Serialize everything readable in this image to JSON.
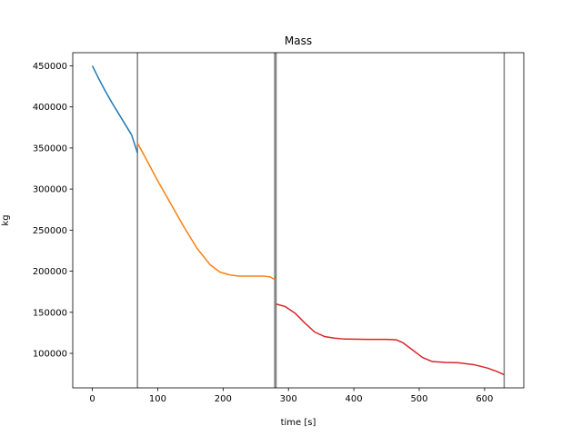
{
  "chart_data": {
    "type": "line",
    "title": "Mass",
    "xlabel": "time [s]",
    "ylabel": "kg",
    "xlim": [
      -30,
      660
    ],
    "ylim": [
      58000,
      466000
    ],
    "xticks": [
      0,
      100,
      200,
      300,
      400,
      500,
      600
    ],
    "yticks": [
      100000,
      150000,
      200000,
      250000,
      300000,
      350000,
      400000,
      450000
    ],
    "grid": false,
    "vlines": {
      "x": [
        69,
        279,
        281,
        630
      ],
      "color": "#808080"
    },
    "series": [
      {
        "color": "#1f77b4",
        "points": [
          [
            0,
            450000
          ],
          [
            10,
            434000
          ],
          [
            20,
            419000
          ],
          [
            30,
            405000
          ],
          [
            40,
            392000
          ],
          [
            50,
            379000
          ],
          [
            60,
            366000
          ],
          [
            69,
            344000
          ]
        ]
      },
      {
        "color": "#ff7f0e",
        "points": [
          [
            69,
            356000
          ],
          [
            80,
            340000
          ],
          [
            100,
            310000
          ],
          [
            120,
            282000
          ],
          [
            140,
            254000
          ],
          [
            160,
            228000
          ],
          [
            180,
            208000
          ],
          [
            195,
            199000
          ],
          [
            210,
            195500
          ],
          [
            225,
            194000
          ],
          [
            245,
            194000
          ],
          [
            262,
            194000
          ],
          [
            272,
            193000
          ],
          [
            279,
            190000
          ]
        ]
      },
      {
        "color": "#2ca02c",
        "points": [
          [
            279,
            193000
          ],
          [
            281,
            192000
          ]
        ]
      },
      {
        "color": "#d62728",
        "points": [
          [
            281,
            160000
          ],
          [
            295,
            157000
          ],
          [
            310,
            149000
          ],
          [
            325,
            137000
          ],
          [
            340,
            126000
          ],
          [
            355,
            120500
          ],
          [
            370,
            118500
          ],
          [
            385,
            117500
          ],
          [
            420,
            117000
          ],
          [
            450,
            117000
          ],
          [
            465,
            116500
          ],
          [
            475,
            113000
          ],
          [
            490,
            104000
          ],
          [
            505,
            95000
          ],
          [
            520,
            90000
          ],
          [
            540,
            89000
          ],
          [
            560,
            88500
          ],
          [
            585,
            86000
          ],
          [
            605,
            82000
          ],
          [
            620,
            77500
          ],
          [
            630,
            74000
          ]
        ]
      }
    ]
  }
}
